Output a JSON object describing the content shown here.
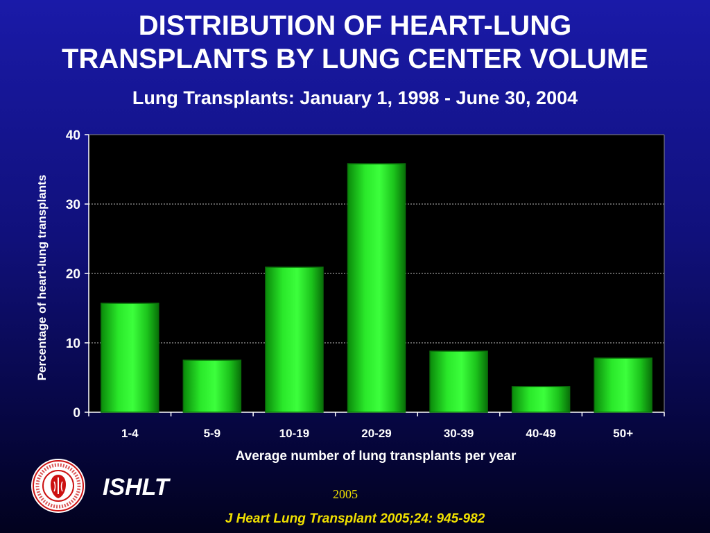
{
  "header": {
    "title_line1": "DISTRIBUTION OF HEART-LUNG",
    "title_line2": "TRANSPLANTS BY LUNG CENTER VOLUME",
    "subtitle": "Lung Transplants: January 1, 1998 - June 30, 2004"
  },
  "chart_data": {
    "type": "bar",
    "categories": [
      "1-4",
      "5-9",
      "10-19",
      "20-29",
      "30-39",
      "40-49",
      "50+"
    ],
    "values": [
      15.7,
      7.5,
      20.9,
      35.8,
      8.8,
      3.7,
      7.8
    ],
    "xlabel": "Average number of lung transplants per year",
    "ylabel": "Percentage of heart-lung transplants",
    "ylim": [
      0,
      40
    ],
    "yticks": [
      0,
      10,
      20,
      30,
      40
    ],
    "grid": true,
    "colors": {
      "bar": "#22dd22",
      "bar_edge": "#0b6e0b",
      "plot_background": "#000000",
      "gridline": "#bbbbbb"
    }
  },
  "footer": {
    "org": "ISHLT",
    "year": "2005",
    "citation": "J Heart Lung Transplant 2005;24: 945-982",
    "logo_icon": "ishlt-seal-icon",
    "logo_text": "International Society for Heart & Lung Transplantation",
    "text_color": "#f0e000"
  }
}
